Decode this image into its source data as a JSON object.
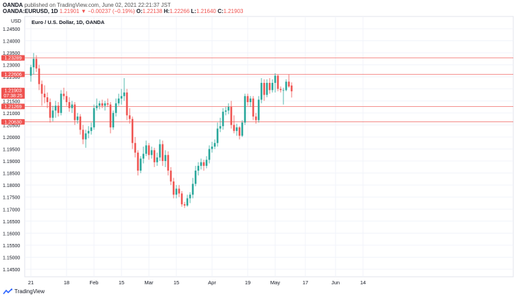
{
  "header": {
    "publisher": "OANDA",
    "published_text": "published on TradingView.com, June 02, 2021 22:21:37 JST",
    "symbol": "OANDA:EURUSD, 1D",
    "last": "1.21901",
    "change": "−0.00237 (−0.19%)",
    "open_label": "O:",
    "open": "1.22138",
    "high_label": "H:",
    "high": "1.22266",
    "low_label": "L:",
    "low": "1.21640",
    "close_label": "C:",
    "close": "1.21903"
  },
  "footer": {
    "brand": "TradingView"
  },
  "colors": {
    "up": "#26a69a",
    "down": "#ef5350",
    "grid": "#f0f3fa",
    "level": "#ef5350"
  },
  "chart_data": {
    "type": "candlestick",
    "title": "Euro / U.S. Dollar, 1D, OANDA",
    "currency": "USD",
    "ylim": [
      1.14,
      1.245
    ],
    "y_ticks": [
      "1.24500",
      "1.24000",
      "1.23500",
      "1.23000",
      "1.22500",
      "1.22000",
      "1.21500",
      "1.21000",
      "1.20500",
      "1.20000",
      "1.19500",
      "1.19000",
      "1.18500",
      "1.18000",
      "1.17500",
      "1.17000",
      "1.16500",
      "1.16000",
      "1.15500",
      "1.15000",
      "1.14500"
    ],
    "x_ticks": [
      {
        "label": "21",
        "index": 0
      },
      {
        "label": "18",
        "index": 13
      },
      {
        "label": "Feb",
        "index": 23
      },
      {
        "label": "15",
        "index": 33
      },
      {
        "label": "Mar",
        "index": 43
      },
      {
        "label": "15",
        "index": 53
      },
      {
        "label": "Apr",
        "index": 66
      },
      {
        "label": "19",
        "index": 79
      },
      {
        "label": "May",
        "index": 89
      },
      {
        "label": "17",
        "index": 100
      },
      {
        "label": "Jun",
        "index": 111
      },
      {
        "label": "14",
        "index": 121
      }
    ],
    "price_labels": [
      {
        "value": 1.23289,
        "text": "1.23289"
      },
      {
        "value": 1.22606,
        "text": "1.22606"
      },
      {
        "value": 1.21903,
        "text": "1.21903",
        "sub": "07:38:25"
      },
      {
        "value": 1.21269,
        "text": "1.21269"
      },
      {
        "value": 1.2063,
        "text": "1.20630"
      }
    ],
    "horizontal_levels": [
      1.23289,
      1.22606,
      1.21269,
      1.2063
    ],
    "candles": [
      {
        "o": 1.2255,
        "h": 1.23,
        "l": 1.223,
        "c": 1.229
      },
      {
        "o": 1.229,
        "h": 1.2349,
        "l": 1.226,
        "c": 1.2325
      },
      {
        "o": 1.2325,
        "h": 1.234,
        "l": 1.227,
        "c": 1.2285
      },
      {
        "o": 1.2285,
        "h": 1.23,
        "l": 1.2195,
        "c": 1.222
      },
      {
        "o": 1.222,
        "h": 1.2235,
        "l": 1.213,
        "c": 1.218
      },
      {
        "o": 1.218,
        "h": 1.2215,
        "l": 1.214,
        "c": 1.2165
      },
      {
        "o": 1.2165,
        "h": 1.2185,
        "l": 1.212,
        "c": 1.2145
      },
      {
        "o": 1.2145,
        "h": 1.216,
        "l": 1.206,
        "c": 1.208
      },
      {
        "o": 1.208,
        "h": 1.213,
        "l": 1.2065,
        "c": 1.211
      },
      {
        "o": 1.211,
        "h": 1.215,
        "l": 1.208,
        "c": 1.213
      },
      {
        "o": 1.213,
        "h": 1.2145,
        "l": 1.2085,
        "c": 1.21
      },
      {
        "o": 1.21,
        "h": 1.2195,
        "l": 1.209,
        "c": 1.218
      },
      {
        "o": 1.218,
        "h": 1.2205,
        "l": 1.2155,
        "c": 1.217
      },
      {
        "o": 1.217,
        "h": 1.219,
        "l": 1.213,
        "c": 1.2145
      },
      {
        "o": 1.2145,
        "h": 1.2165,
        "l": 1.2105,
        "c": 1.212
      },
      {
        "o": 1.212,
        "h": 1.215,
        "l": 1.21,
        "c": 1.2135
      },
      {
        "o": 1.2135,
        "h": 1.2145,
        "l": 1.205,
        "c": 1.207
      },
      {
        "o": 1.207,
        "h": 1.21,
        "l": 1.2055,
        "c": 1.2085
      },
      {
        "o": 1.2085,
        "h": 1.2095,
        "l": 1.201,
        "c": 1.203
      },
      {
        "o": 1.203,
        "h": 1.205,
        "l": 1.197,
        "c": 1.199
      },
      {
        "o": 1.199,
        "h": 1.203,
        "l": 1.1955,
        "c": 1.2015
      },
      {
        "o": 1.2015,
        "h": 1.2045,
        "l": 1.1995,
        "c": 1.2025
      },
      {
        "o": 1.2025,
        "h": 1.206,
        "l": 1.201,
        "c": 1.204
      },
      {
        "o": 1.204,
        "h": 1.2135,
        "l": 1.203,
        "c": 1.212
      },
      {
        "o": 1.212,
        "h": 1.216,
        "l": 1.211,
        "c": 1.213
      },
      {
        "o": 1.213,
        "h": 1.215,
        "l": 1.2115,
        "c": 1.214
      },
      {
        "o": 1.214,
        "h": 1.2155,
        "l": 1.212,
        "c": 1.213
      },
      {
        "o": 1.213,
        "h": 1.215,
        "l": 1.211,
        "c": 1.214
      },
      {
        "o": 1.214,
        "h": 1.216,
        "l": 1.2125,
        "c": 1.2135
      },
      {
        "o": 1.2135,
        "h": 1.2145,
        "l": 1.2015,
        "c": 1.204
      },
      {
        "o": 1.204,
        "h": 1.211,
        "l": 1.203,
        "c": 1.21
      },
      {
        "o": 1.21,
        "h": 1.216,
        "l": 1.2085,
        "c": 1.214
      },
      {
        "o": 1.214,
        "h": 1.218,
        "l": 1.213,
        "c": 1.216
      },
      {
        "o": 1.216,
        "h": 1.22,
        "l": 1.2135,
        "c": 1.217
      },
      {
        "o": 1.217,
        "h": 1.2245,
        "l": 1.215,
        "c": 1.2185
      },
      {
        "o": 1.2185,
        "h": 1.22,
        "l": 1.207,
        "c": 1.209
      },
      {
        "o": 1.209,
        "h": 1.212,
        "l": 1.2055,
        "c": 1.2075
      },
      {
        "o": 1.2075,
        "h": 1.2085,
        "l": 1.195,
        "c": 1.1975
      },
      {
        "o": 1.1975,
        "h": 1.2,
        "l": 1.1915,
        "c": 1.1935
      },
      {
        "o": 1.1935,
        "h": 1.1945,
        "l": 1.184,
        "c": 1.186
      },
      {
        "o": 1.186,
        "h": 1.192,
        "l": 1.185,
        "c": 1.191
      },
      {
        "o": 1.191,
        "h": 1.196,
        "l": 1.189,
        "c": 1.193
      },
      {
        "o": 1.193,
        "h": 1.1985,
        "l": 1.192,
        "c": 1.1965
      },
      {
        "o": 1.1965,
        "h": 1.1975,
        "l": 1.1905,
        "c": 1.1925
      },
      {
        "o": 1.1925,
        "h": 1.196,
        "l": 1.191,
        "c": 1.1945
      },
      {
        "o": 1.1945,
        "h": 1.1955,
        "l": 1.1875,
        "c": 1.1895
      },
      {
        "o": 1.1895,
        "h": 1.1935,
        "l": 1.188,
        "c": 1.1915
      },
      {
        "o": 1.1915,
        "h": 1.199,
        "l": 1.19,
        "c": 1.197
      },
      {
        "o": 1.197,
        "h": 1.1985,
        "l": 1.188,
        "c": 1.19
      },
      {
        "o": 1.19,
        "h": 1.1945,
        "l": 1.1875,
        "c": 1.1925
      },
      {
        "o": 1.1925,
        "h": 1.194,
        "l": 1.184,
        "c": 1.186
      },
      {
        "o": 1.186,
        "h": 1.1875,
        "l": 1.18,
        "c": 1.1815
      },
      {
        "o": 1.1815,
        "h": 1.183,
        "l": 1.1745,
        "c": 1.176
      },
      {
        "o": 1.176,
        "h": 1.18,
        "l": 1.1745,
        "c": 1.1785
      },
      {
        "o": 1.1785,
        "h": 1.18,
        "l": 1.175,
        "c": 1.1765
      },
      {
        "o": 1.1765,
        "h": 1.1775,
        "l": 1.171,
        "c": 1.172
      },
      {
        "o": 1.172,
        "h": 1.173,
        "l": 1.1705,
        "c": 1.1715
      },
      {
        "o": 1.1715,
        "h": 1.176,
        "l": 1.171,
        "c": 1.1745
      },
      {
        "o": 1.1745,
        "h": 1.177,
        "l": 1.1725,
        "c": 1.176
      },
      {
        "o": 1.176,
        "h": 1.183,
        "l": 1.1745,
        "c": 1.1805
      },
      {
        "o": 1.1805,
        "h": 1.188,
        "l": 1.1795,
        "c": 1.186
      },
      {
        "o": 1.186,
        "h": 1.1895,
        "l": 1.184,
        "c": 1.188
      },
      {
        "o": 1.188,
        "h": 1.191,
        "l": 1.1865,
        "c": 1.1895
      },
      {
        "o": 1.1895,
        "h": 1.1905,
        "l": 1.186,
        "c": 1.188
      },
      {
        "o": 1.188,
        "h": 1.192,
        "l": 1.187,
        "c": 1.1905
      },
      {
        "o": 1.1905,
        "h": 1.1965,
        "l": 1.189,
        "c": 1.195
      },
      {
        "o": 1.195,
        "h": 1.198,
        "l": 1.1935,
        "c": 1.196
      },
      {
        "o": 1.196,
        "h": 1.199,
        "l": 1.195,
        "c": 1.1975
      },
      {
        "o": 1.1975,
        "h": 1.206,
        "l": 1.196,
        "c": 1.2035
      },
      {
        "o": 1.2035,
        "h": 1.208,
        "l": 1.202,
        "c": 1.2045
      },
      {
        "o": 1.2045,
        "h": 1.212,
        "l": 1.203,
        "c": 1.2105
      },
      {
        "o": 1.2105,
        "h": 1.2125,
        "l": 1.209,
        "c": 1.211
      },
      {
        "o": 1.211,
        "h": 1.214,
        "l": 1.2095,
        "c": 1.2125
      },
      {
        "o": 1.2125,
        "h": 1.215,
        "l": 1.2035,
        "c": 1.205
      },
      {
        "o": 1.205,
        "h": 1.209,
        "l": 1.2015,
        "c": 1.2025
      },
      {
        "o": 1.2025,
        "h": 1.2055,
        "l": 1.2005,
        "c": 1.204
      },
      {
        "o": 1.204,
        "h": 1.2045,
        "l": 1.199,
        "c": 1.2005
      },
      {
        "o": 1.2005,
        "h": 1.207,
        "l": 1.2,
        "c": 1.206
      },
      {
        "o": 1.206,
        "h": 1.218,
        "l": 1.205,
        "c": 1.217
      },
      {
        "o": 1.217,
        "h": 1.218,
        "l": 1.213,
        "c": 1.2145
      },
      {
        "o": 1.2145,
        "h": 1.217,
        "l": 1.2125,
        "c": 1.216
      },
      {
        "o": 1.216,
        "h": 1.217,
        "l": 1.207,
        "c": 1.2085
      },
      {
        "o": 1.2085,
        "h": 1.21,
        "l": 1.2055,
        "c": 1.207
      },
      {
        "o": 1.207,
        "h": 1.217,
        "l": 1.206,
        "c": 1.2155
      },
      {
        "o": 1.2155,
        "h": 1.2245,
        "l": 1.214,
        "c": 1.2225
      },
      {
        "o": 1.2225,
        "h": 1.224,
        "l": 1.215,
        "c": 1.2175
      },
      {
        "o": 1.2175,
        "h": 1.224,
        "l": 1.2165,
        "c": 1.2225
      },
      {
        "o": 1.2225,
        "h": 1.2245,
        "l": 1.218,
        "c": 1.2195
      },
      {
        "o": 1.2195,
        "h": 1.224,
        "l": 1.2185,
        "c": 1.2225
      },
      {
        "o": 1.2225,
        "h": 1.2265,
        "l": 1.2185,
        "c": 1.2255
      },
      {
        "o": 1.2255,
        "h": 1.226,
        "l": 1.219,
        "c": 1.22
      },
      {
        "o": 1.22,
        "h": 1.221,
        "l": 1.2185,
        "c": 1.2195
      },
      {
        "o": 1.2195,
        "h": 1.2205,
        "l": 1.2135,
        "c": 1.2195
      },
      {
        "o": 1.2195,
        "h": 1.224,
        "l": 1.219,
        "c": 1.223
      },
      {
        "o": 1.223,
        "h": 1.226,
        "l": 1.2205,
        "c": 1.221
      },
      {
        "o": 1.2214,
        "h": 1.2227,
        "l": 1.2164,
        "c": 1.219
      }
    ]
  }
}
